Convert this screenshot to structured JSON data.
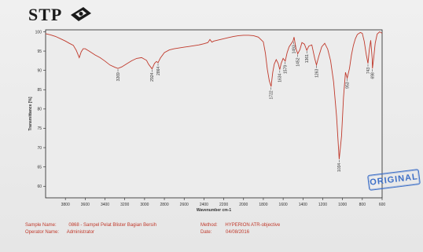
{
  "logo": {
    "text": "STP"
  },
  "stamp": {
    "text": "ORIGINAL"
  },
  "footer": {
    "sample_name_label": "Sample Name:",
    "sample_name_value": "0868 - Sampel Pelat Blister Bagian Bersih",
    "operator_name_label": "Operator Name:",
    "operator_name_value": "Administrator",
    "method_label": "Method:",
    "method_value": "HYPERION ATR-objective",
    "date_label": "Date:",
    "date_value": "04/08/2016"
  },
  "colors": {
    "line": "#c0392b",
    "axis": "#222222",
    "footer": "#c0392b",
    "stamp": "#3d6fc7"
  },
  "chart_data": {
    "type": "line",
    "xlabel": "Wavenumber cm-1",
    "ylabel": "Transmittance [%]",
    "x_reversed": true,
    "xlim": [
      4000,
      600
    ],
    "ylim": [
      57,
      100.5
    ],
    "x_ticks": [
      3800,
      3600,
      3400,
      3200,
      3000,
      2800,
      2600,
      2400,
      2200,
      2000,
      1800,
      1600,
      1400,
      1200,
      1000,
      800,
      600
    ],
    "y_ticks": [
      60,
      65,
      70,
      75,
      80,
      85,
      90,
      95,
      100
    ],
    "series": [
      {
        "x": [
          4000,
          3950,
          3900,
          3850,
          3800,
          3760,
          3720,
          3690,
          3660,
          3640,
          3620,
          3600,
          3560,
          3500,
          3450,
          3400,
          3350,
          3300,
          3269,
          3230,
          3180,
          3130,
          3080,
          3030,
          2980,
          2960,
          2924,
          2900,
          2880,
          2864,
          2840,
          2800,
          2750,
          2700,
          2650,
          2600,
          2550,
          2500,
          2450,
          2400,
          2360,
          2340,
          2320,
          2300,
          2250,
          2200,
          2150,
          2100,
          2050,
          2000,
          1950,
          1900,
          1850,
          1800,
          1780,
          1760,
          1740,
          1722,
          1705,
          1690,
          1670,
          1650,
          1634,
          1620,
          1600,
          1579,
          1560,
          1540,
          1500,
          1490,
          1470,
          1452,
          1430,
          1410,
          1385,
          1361,
          1340,
          1310,
          1280,
          1263,
          1240,
          1210,
          1180,
          1150,
          1120,
          1090,
          1060,
          1034,
          1010,
          990,
          970,
          953,
          930,
          910,
          890,
          870,
          850,
          820,
          800,
          780,
          760,
          743,
          730,
          715,
          700,
          698,
          685,
          670,
          650,
          625,
          600
        ],
        "y": [
          99.5,
          99.2,
          98.8,
          98.2,
          97.6,
          97.0,
          96.5,
          95.2,
          93.3,
          94.8,
          95.6,
          95.6,
          95.0,
          94.0,
          93.3,
          92.4,
          91.4,
          90.8,
          90.5,
          90.9,
          91.7,
          92.5,
          93.1,
          93.3,
          92.6,
          91.6,
          90.4,
          91.8,
          92.3,
          92.0,
          93.2,
          94.6,
          95.3,
          95.6,
          95.8,
          96.0,
          96.2,
          96.4,
          96.6,
          96.9,
          97.2,
          98.0,
          97.3,
          97.6,
          97.9,
          98.2,
          98.5,
          98.8,
          99.0,
          99.1,
          99.1,
          99.0,
          98.6,
          97.4,
          94.5,
          90.3,
          87.3,
          85.8,
          89.5,
          91.6,
          92.8,
          91.8,
          90.2,
          91.8,
          93.1,
          92.4,
          94.6,
          96.1,
          97.6,
          98.6,
          95.6,
          94.3,
          95.4,
          97.2,
          96.8,
          95.2,
          96.3,
          96.6,
          93.0,
          91.4,
          93.6,
          96.1,
          97.0,
          95.5,
          92.5,
          87.0,
          78.0,
          67.0,
          73.0,
          83.0,
          89.5,
          88.0,
          90.5,
          94.0,
          96.5,
          98.2,
          99.3,
          99.8,
          99.6,
          97.5,
          94.0,
          91.8,
          95.2,
          97.8,
          93.0,
          90.5,
          93.2,
          97.0,
          99.4,
          100.0,
          99.6
        ]
      }
    ],
    "peaks": [
      {
        "x": 3269,
        "y": 90.5,
        "label": "3269"
      },
      {
        "x": 2924,
        "y": 90.4,
        "label": "2924"
      },
      {
        "x": 2864,
        "y": 92.0,
        "label": "2864"
      },
      {
        "x": 1722,
        "y": 85.8,
        "label": "1722"
      },
      {
        "x": 1634,
        "y": 90.2,
        "label": "1634"
      },
      {
        "x": 1579,
        "y": 92.4,
        "label": "1579"
      },
      {
        "x": 1493,
        "y": 97.6,
        "label": "1493"
      },
      {
        "x": 1452,
        "y": 94.3,
        "label": "1452"
      },
      {
        "x": 1361,
        "y": 95.2,
        "label": "1361"
      },
      {
        "x": 1263,
        "y": 91.4,
        "label": "1263"
      },
      {
        "x": 1034,
        "y": 67.0,
        "label": "1034"
      },
      {
        "x": 953,
        "y": 88.0,
        "label": "953"
      },
      {
        "x": 743,
        "y": 91.8,
        "label": "743"
      },
      {
        "x": 698,
        "y": 90.5,
        "label": "698"
      }
    ]
  }
}
